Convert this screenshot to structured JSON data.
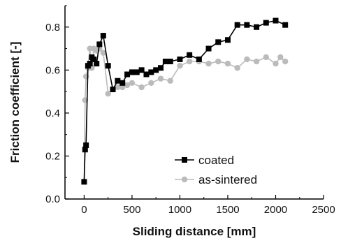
{
  "chart_data": {
    "type": "line",
    "xlabel": "Sliding distance [mm]",
    "ylabel": "Friction coefficient [-]",
    "xlim": [
      -200,
      2500
    ],
    "ylim": [
      0.0,
      0.9
    ],
    "x_ticks": [
      0,
      500,
      1000,
      1500,
      2000,
      2500
    ],
    "x_tick_labels": [
      "0",
      "500",
      "1000",
      "1500",
      "2000",
      "2500"
    ],
    "y_ticks": [
      0.0,
      0.2,
      0.4,
      0.6,
      0.8
    ],
    "y_tick_labels": [
      "0.0",
      "0.2",
      "0.4",
      "0.6",
      "0.8"
    ],
    "grid": false,
    "legend_position": "bottom-right",
    "series": [
      {
        "name": "coated",
        "color": "#000000",
        "marker": "square",
        "x": [
          0,
          10,
          20,
          40,
          60,
          80,
          100,
          130,
          160,
          200,
          250,
          300,
          350,
          400,
          450,
          500,
          550,
          600,
          650,
          700,
          750,
          800,
          850,
          900,
          1000,
          1100,
          1200,
          1300,
          1400,
          1500,
          1600,
          1700,
          1800,
          1900,
          2000,
          2100
        ],
        "y": [
          0.08,
          0.23,
          0.25,
          0.62,
          0.63,
          0.66,
          0.65,
          0.63,
          0.72,
          0.76,
          0.62,
          0.51,
          0.55,
          0.54,
          0.58,
          0.59,
          0.59,
          0.6,
          0.58,
          0.59,
          0.6,
          0.61,
          0.64,
          0.64,
          0.65,
          0.67,
          0.65,
          0.7,
          0.73,
          0.74,
          0.81,
          0.81,
          0.8,
          0.82,
          0.83,
          0.81
        ]
      },
      {
        "name": "as-sintered",
        "color": "#bbbbbb",
        "marker": "circle",
        "x": [
          0,
          10,
          20,
          40,
          60,
          80,
          100,
          130,
          160,
          200,
          250,
          300,
          350,
          400,
          450,
          500,
          600,
          700,
          800,
          900,
          1000,
          1100,
          1200,
          1300,
          1400,
          1500,
          1600,
          1700,
          1800,
          1900,
          2000,
          2050,
          2100
        ],
        "y": [
          0.08,
          0.46,
          0.57,
          0.61,
          0.7,
          0.61,
          0.7,
          0.69,
          0.7,
          0.68,
          0.49,
          0.51,
          0.52,
          0.52,
          0.53,
          0.54,
          0.52,
          0.54,
          0.56,
          0.55,
          0.62,
          0.64,
          0.64,
          0.63,
          0.64,
          0.63,
          0.61,
          0.65,
          0.64,
          0.66,
          0.63,
          0.66,
          0.64
        ]
      }
    ]
  }
}
